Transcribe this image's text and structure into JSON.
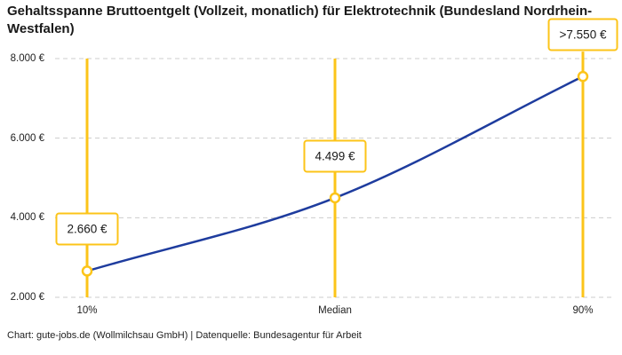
{
  "title": "Gehaltsspanne Bruttoentgelt (Vollzeit, monatlich) für Elektrotechnik (Bundesland Nordrhein-Westfalen)",
  "footer": "Chart: gute-jobs.de (Wollmilchsau GmbH) | Datenquelle: Bundesagentur für Arbeit",
  "chart_data": {
    "type": "line",
    "title": "Gehaltsspanne Bruttoentgelt (Vollzeit, monatlich) für Elektrotechnik (Bundesland Nordrhein-Westfalen)",
    "categories": [
      "10%",
      "Median",
      "90%"
    ],
    "values": [
      2660,
      4499,
      7550
    ],
    "value_labels": [
      "2.660 €",
      "4.499 €",
      ">7.550 €"
    ],
    "series_name": "Bruttoentgelt",
    "xlabel": "",
    "ylabel": "",
    "ylim": [
      2000,
      8000
    ],
    "yticks": [
      2000,
      4000,
      6000,
      8000
    ],
    "ytick_labels": [
      "2.000 €",
      "4.000 €",
      "6.000 €",
      "8.000 €"
    ],
    "grid": "horizontal-dashed",
    "legend": "none",
    "colors": {
      "line": "#1E3C9E",
      "marker_stroke": "#FCC419",
      "marker_fill": "#ffffff",
      "percentile_line": "#FCC419",
      "annotation_border": "#FCC419",
      "grid": "#cccccc",
      "text": "#191919"
    }
  }
}
